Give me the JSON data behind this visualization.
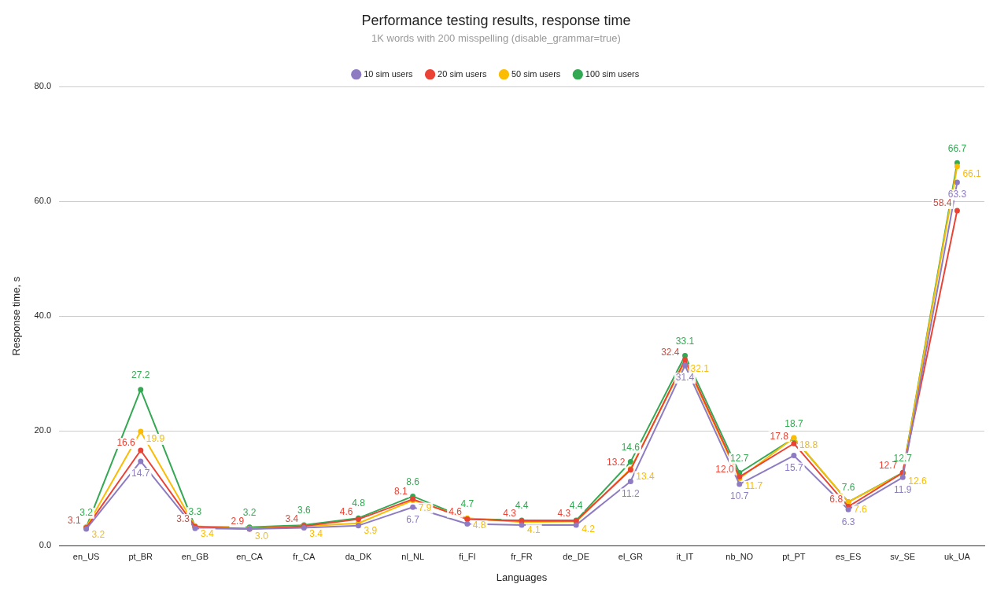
{
  "chart_data": {
    "type": "line",
    "title": "Performance testing results, response time",
    "subtitle": "1K words with 200 misspelling (disable_grammar=true)",
    "xlabel": "Languages",
    "ylabel": "Response time, s",
    "categories": [
      "en_US",
      "pt_BR",
      "en_GB",
      "en_CA",
      "fr_CA",
      "da_DK",
      "nl_NL",
      "fi_FI",
      "fr_FR",
      "de_DE",
      "el_GR",
      "it_IT",
      "nb_NO",
      "pt_PT",
      "es_ES",
      "sv_SE",
      "uk_UA"
    ],
    "series": [
      {
        "name": "10 sim users",
        "color": "#8e7cc3",
        "values": [
          2.9,
          14.7,
          3.0,
          2.9,
          3.1,
          3.5,
          6.7,
          3.8,
          3.6,
          3.6,
          11.2,
          31.4,
          10.7,
          15.7,
          6.3,
          11.9,
          63.3
        ],
        "value_labels": [
          null,
          "14.7",
          null,
          null,
          null,
          null,
          "6.7",
          null,
          null,
          null,
          "11.2",
          "31.4",
          "10.7",
          "15.7",
          "6.3",
          "11.9",
          "63.3"
        ]
      },
      {
        "name": "20 sim users",
        "color": "#ea4335",
        "values": [
          3.1,
          16.6,
          3.3,
          2.9,
          3.4,
          4.6,
          8.1,
          4.6,
          4.3,
          4.3,
          13.2,
          32.4,
          12.0,
          17.8,
          6.8,
          12.7,
          58.4
        ],
        "value_labels": [
          "3.1",
          "16.6",
          "3.3",
          "2.9",
          "3.4",
          "4.6",
          "8.1",
          "4.6",
          "4.3",
          "4.3",
          "13.2",
          "32.4",
          "12.0",
          "17.8",
          "6.8",
          "12.7",
          "58.4"
        ]
      },
      {
        "name": "50 sim users",
        "color": "#fbbc04",
        "values": [
          3.2,
          19.9,
          3.4,
          3.0,
          3.4,
          3.9,
          7.9,
          4.8,
          4.1,
          4.2,
          13.4,
          32.1,
          11.7,
          18.8,
          7.6,
          12.6,
          66.1
        ],
        "value_labels": [
          "3.2",
          "19.9",
          "3.4",
          "3.0",
          "3.4",
          "3.9",
          "7.9",
          "4.8",
          "4.1",
          "4.2",
          "13.4",
          "32.1",
          "11.7",
          "18.8",
          "7.6",
          "12.6",
          "66.1"
        ]
      },
      {
        "name": "100 sim users",
        "color": "#34a853",
        "values": [
          3.2,
          27.2,
          3.3,
          3.2,
          3.6,
          4.8,
          8.6,
          4.7,
          4.4,
          4.4,
          14.6,
          33.1,
          12.7,
          18.7,
          7.6,
          12.7,
          66.7
        ],
        "value_labels": [
          "3.2",
          "27.2",
          "3.3",
          "3.2",
          "3.6",
          "4.8",
          "8.6",
          "4.7",
          "4.4",
          "4.4",
          "14.6",
          "33.1",
          "12.7",
          "18.7",
          "7.6",
          "12.7",
          "66.7"
        ]
      }
    ],
    "ylim": [
      0,
      80
    ],
    "yticks": [
      {
        "value": 0,
        "label": "0.0"
      },
      {
        "value": 20,
        "label": "20.0"
      },
      {
        "value": 40,
        "label": "40.0"
      },
      {
        "value": 60,
        "label": "60.0"
      },
      {
        "value": 80,
        "label": "80.0"
      }
    ],
    "grid": "y",
    "legend": "top",
    "marker": "circle",
    "line_style": "solid"
  }
}
